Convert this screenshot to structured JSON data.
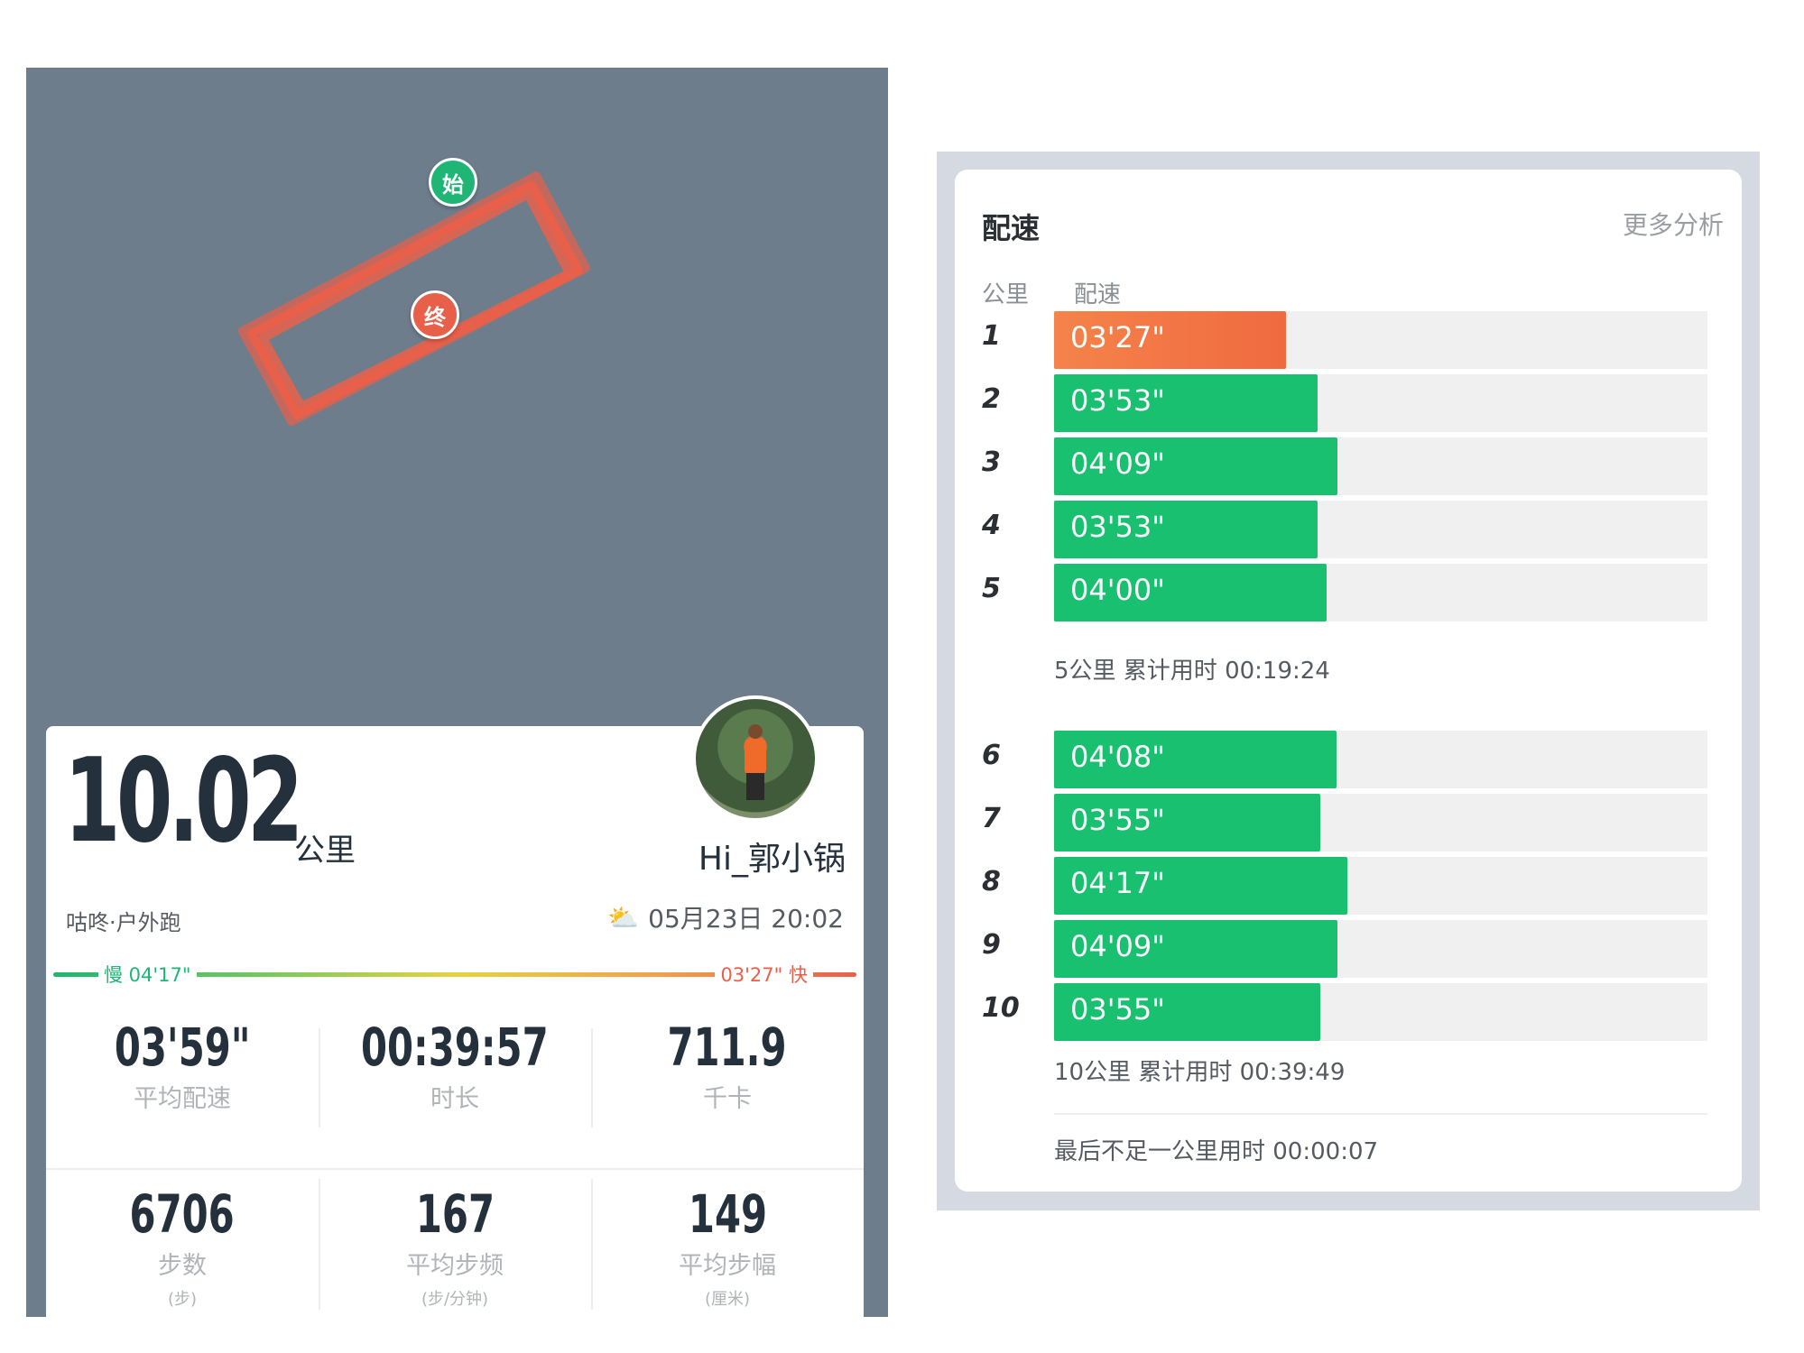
{
  "map": {
    "start_pin": "始",
    "end_pin": "终",
    "route_color": "#e8604a"
  },
  "summary": {
    "distance": "10.02",
    "distance_unit": "公里",
    "username": "Hi_郭小锅",
    "activity_type": "咕咚·户外跑",
    "datetime": "05月23日 20:02",
    "weather_icon": "partly-cloudy-icon",
    "legend_slow": "慢 04'17\"",
    "legend_fast": "03'27\" 快",
    "stats": [
      {
        "value": "03'59\"",
        "label": "平均配速",
        "unit": ""
      },
      {
        "value": "00:39:57",
        "label": "时长",
        "unit": ""
      },
      {
        "value": "711.9",
        "label": "千卡",
        "unit": ""
      },
      {
        "value": "6706",
        "label": "步数",
        "unit": "(步)"
      },
      {
        "value": "167",
        "label": "平均步频",
        "unit": "(步/分钟)"
      },
      {
        "value": "149",
        "label": "平均步幅",
        "unit": "(厘米)"
      }
    ]
  },
  "pace": {
    "title": "配速",
    "more": "更多分析",
    "col_km": "公里",
    "col_pace": "配速",
    "splits": [
      {
        "km": "1",
        "pace": "03'27\"",
        "seconds": 207
      },
      {
        "km": "2",
        "pace": "03'53\"",
        "seconds": 233
      },
      {
        "km": "3",
        "pace": "04'09\"",
        "seconds": 249
      },
      {
        "km": "4",
        "pace": "03'53\"",
        "seconds": 233
      },
      {
        "km": "5",
        "pace": "04'00\"",
        "seconds": 240
      },
      {
        "km": "6",
        "pace": "04'08\"",
        "seconds": 248
      },
      {
        "km": "7",
        "pace": "03'55\"",
        "seconds": 235
      },
      {
        "km": "8",
        "pace": "04'17\"",
        "seconds": 257
      },
      {
        "km": "9",
        "pace": "04'09\"",
        "seconds": 249
      },
      {
        "km": "10",
        "pace": "03'55\"",
        "seconds": 235
      }
    ],
    "cumulative_5": "5公里 累计用时 00:19:24",
    "cumulative_10": "10公里 累计用时 00:39:49",
    "last_partial": "最后不足一公里用时 00:00:07",
    "colors": {
      "normal": "#18c06f",
      "fastest": "#f06a40",
      "track": "#f0f0f0"
    }
  }
}
